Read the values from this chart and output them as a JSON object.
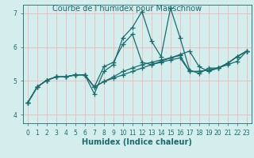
{
  "title": "Courbe de l’humidex pour Manschnow",
  "xlabel": "Humidex (Indice chaleur)",
  "bg_color": "#d4eeee",
  "line_color": "#1a6b6b",
  "grid_color": "#f0b8b8",
  "xlim": [
    -0.5,
    23.5
  ],
  "ylim": [
    3.75,
    7.25
  ],
  "yticks": [
    4,
    5,
    6,
    7
  ],
  "xticks": [
    0,
    1,
    2,
    3,
    4,
    5,
    6,
    7,
    8,
    9,
    10,
    11,
    12,
    13,
    14,
    15,
    16,
    17,
    18,
    19,
    20,
    21,
    22,
    23
  ],
  "lines": [
    [
      4.35,
      4.82,
      5.02,
      5.12,
      5.12,
      5.18,
      5.18,
      4.62,
      5.28,
      5.48,
      6.28,
      6.58,
      7.05,
      6.18,
      5.72,
      7.15,
      6.28,
      5.32,
      5.22,
      5.38,
      5.38,
      5.52,
      5.72,
      5.88
    ],
    [
      4.35,
      4.82,
      5.02,
      5.12,
      5.12,
      5.18,
      5.18,
      4.82,
      5.42,
      5.55,
      6.08,
      6.38,
      5.55,
      5.48,
      5.58,
      5.68,
      5.78,
      5.88,
      5.42,
      5.28,
      5.38,
      5.52,
      5.72,
      5.88
    ],
    [
      4.35,
      4.82,
      5.02,
      5.12,
      5.12,
      5.18,
      5.18,
      4.82,
      4.98,
      5.12,
      5.28,
      5.38,
      5.48,
      5.55,
      5.62,
      5.68,
      5.75,
      5.28,
      5.28,
      5.32,
      5.38,
      5.52,
      5.72,
      5.88
    ],
    [
      4.35,
      4.82,
      5.02,
      5.12,
      5.12,
      5.18,
      5.18,
      4.82,
      4.98,
      5.08,
      5.18,
      5.28,
      5.38,
      5.48,
      5.55,
      5.62,
      5.68,
      5.28,
      5.28,
      5.32,
      5.38,
      5.48,
      5.58,
      5.88
    ]
  ],
  "marker": "+",
  "linewidth": 0.9,
  "markersize": 4,
  "markeredgewidth": 0.9,
  "label_fontsize": 7,
  "tick_fontsize": 5.5
}
